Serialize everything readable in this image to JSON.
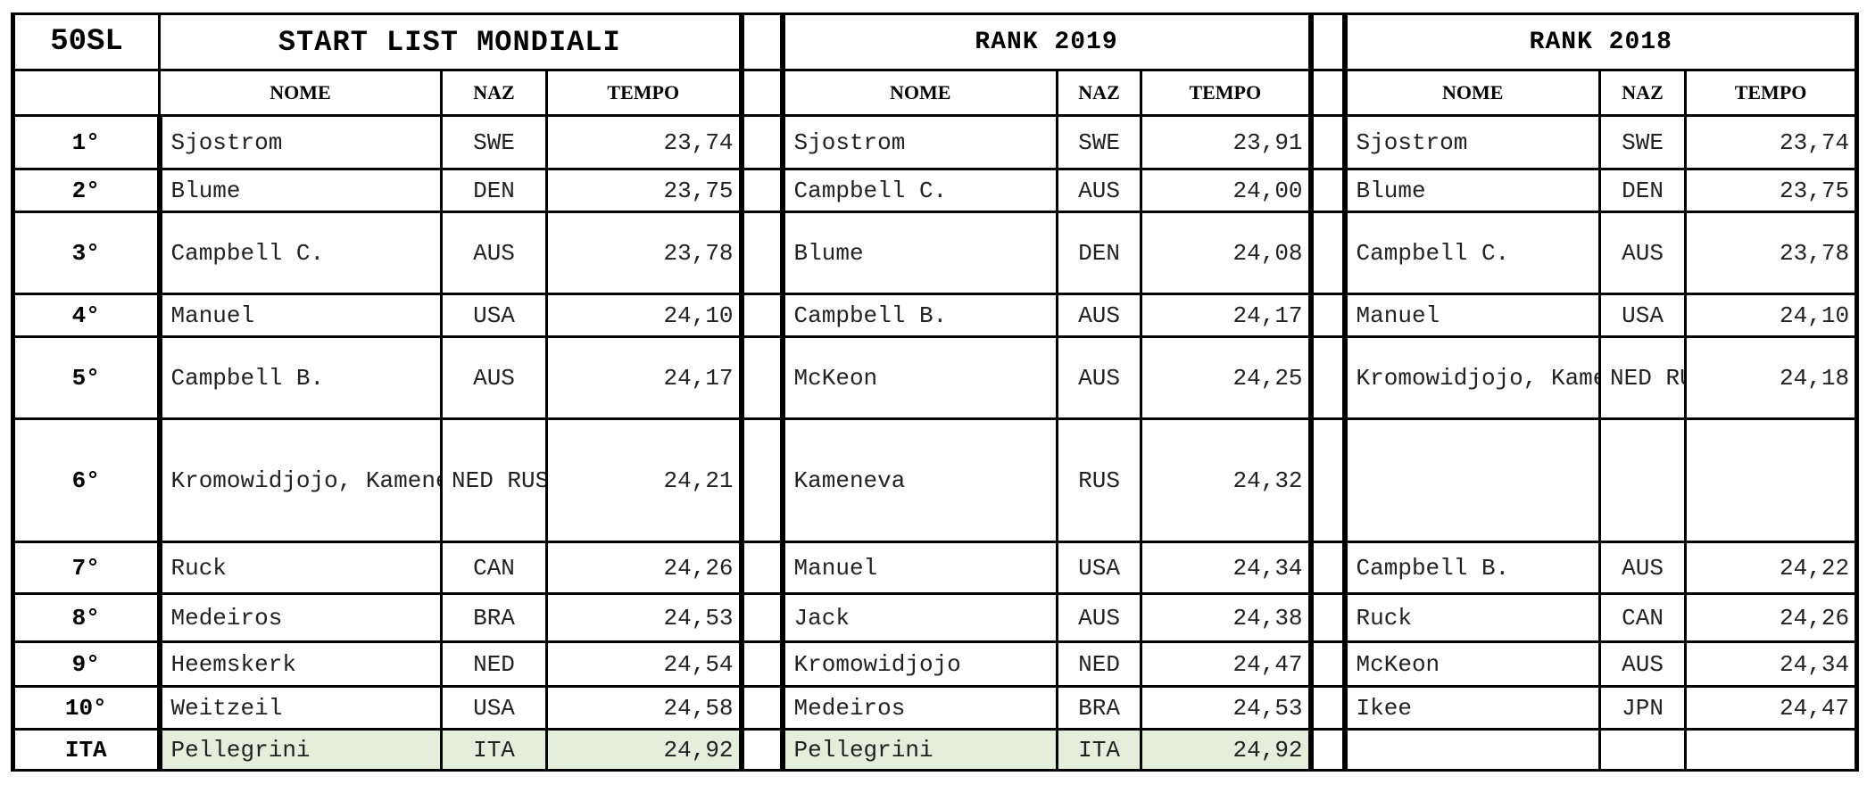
{
  "header": {
    "corner": "50SL",
    "start_title": "START LIST MONDIALI",
    "rank2019_title": "RANK 2019",
    "rank2018_title": "RANK 2018"
  },
  "columns": {
    "nome": "NOME",
    "naz": "NAZ",
    "tempo": "TEMPO"
  },
  "rows": [
    {
      "rank": "1°",
      "start": {
        "nome": "Sjostrom",
        "naz": "SWE",
        "tempo": "23,74"
      },
      "r2019": {
        "nome": "Sjostrom",
        "naz": "SWE",
        "tempo": "23,91"
      },
      "r2018": {
        "nome": "Sjostrom",
        "naz": "SWE",
        "tempo": "23,74"
      }
    },
    {
      "rank": "2°",
      "start": {
        "nome": "Blume",
        "naz": "DEN",
        "tempo": "23,75"
      },
      "r2019": {
        "nome": "Campbell C.",
        "naz": "AUS",
        "tempo": "24,00"
      },
      "r2018": {
        "nome": "Blume",
        "naz": "DEN",
        "tempo": "23,75"
      }
    },
    {
      "rank": "3°",
      "start": {
        "nome": "Campbell C.",
        "naz": "AUS",
        "tempo": "23,78"
      },
      "r2019": {
        "nome": "Blume",
        "naz": "DEN",
        "tempo": "24,08"
      },
      "r2018": {
        "nome": "Campbell C.",
        "naz": "AUS",
        "tempo": "23,78"
      }
    },
    {
      "rank": "4°",
      "start": {
        "nome": "Manuel",
        "naz": "USA",
        "tempo": "24,10"
      },
      "r2019": {
        "nome": "Campbell B.",
        "naz": "AUS",
        "tempo": "24,17"
      },
      "r2018": {
        "nome": "Manuel",
        "naz": "USA",
        "tempo": "24,10"
      }
    },
    {
      "rank": "5°",
      "start": {
        "nome": "Campbell B.",
        "naz": "AUS",
        "tempo": "24,17"
      },
      "r2019": {
        "nome": "McKeon",
        "naz": "AUS",
        "tempo": "24,25"
      },
      "r2018": {
        "nome": "Kromowidjojo,\nKameneva",
        "naz": "NED\nRUS",
        "tempo": "24,18"
      }
    },
    {
      "rank": "6°",
      "start": {
        "nome": "Kromowidjojo,\nKameneva",
        "naz": "NED\nRUS",
        "tempo": "24,21"
      },
      "r2019": {
        "nome": "Kameneva",
        "naz": "RUS",
        "tempo": "24,32"
      },
      "r2018": {
        "nome": "",
        "naz": "",
        "tempo": ""
      }
    },
    {
      "rank": "7°",
      "start": {
        "nome": "Ruck",
        "naz": "CAN",
        "tempo": "24,26"
      },
      "r2019": {
        "nome": "Manuel",
        "naz": "USA",
        "tempo": "24,34"
      },
      "r2018": {
        "nome": "Campbell B.",
        "naz": "AUS",
        "tempo": "24,22"
      }
    },
    {
      "rank": "8°",
      "start": {
        "nome": "Medeiros",
        "naz": "BRA",
        "tempo": "24,53"
      },
      "r2019": {
        "nome": "Jack",
        "naz": "AUS",
        "tempo": "24,38"
      },
      "r2018": {
        "nome": "Ruck",
        "naz": "CAN",
        "tempo": "24,26"
      }
    },
    {
      "rank": "9°",
      "start": {
        "nome": "Heemskerk",
        "naz": "NED",
        "tempo": "24,54"
      },
      "r2019": {
        "nome": "Kromowidjojo",
        "naz": "NED",
        "tempo": "24,47"
      },
      "r2018": {
        "nome": "McKeon",
        "naz": "AUS",
        "tempo": "24,34"
      }
    },
    {
      "rank": "10°",
      "start": {
        "nome": "Weitzeil",
        "naz": "USA",
        "tempo": "24,58"
      },
      "r2019": {
        "nome": "Medeiros",
        "naz": "BRA",
        "tempo": "24,53"
      },
      "r2018": {
        "nome": "Ikee",
        "naz": "JPN",
        "tempo": "24,47"
      }
    },
    {
      "rank": "ITA",
      "start": {
        "nome": "Pellegrini",
        "naz": "ITA",
        "tempo": "24,92"
      },
      "r2019": {
        "nome": "Pellegrini",
        "naz": "ITA",
        "tempo": "24,92"
      },
      "r2018": {
        "nome": "",
        "naz": "",
        "tempo": ""
      }
    }
  ],
  "colors": {
    "highlight": "#e3eedb",
    "border": "#000000"
  }
}
